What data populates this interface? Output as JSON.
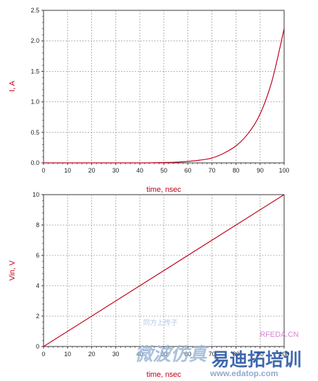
{
  "colors": {
    "series": "#c0001a",
    "grid": "#9a9a9a",
    "axis": "#333333"
  },
  "chart_data": [
    {
      "type": "line",
      "title": "",
      "xlabel": "time, nsec",
      "ylabel": "I, A",
      "xlim": [
        0,
        100
      ],
      "ylim": [
        0,
        2.5
      ],
      "x_ticks": [
        "0",
        "10",
        "20",
        "30",
        "40",
        "50",
        "60",
        "70",
        "80",
        "90",
        "100"
      ],
      "y_ticks": [
        "0.0",
        "0.5",
        "1.0",
        "1.5",
        "2.0",
        "2.5"
      ],
      "grid": true,
      "series": [
        {
          "x": [
            0,
            10,
            20,
            30,
            40,
            45,
            50,
            55,
            60,
            65,
            70,
            75,
            80,
            85,
            90,
            95,
            100
          ],
          "y": [
            0.0,
            0.0,
            0.0,
            0.0,
            0.0,
            0.002,
            0.006,
            0.012,
            0.024,
            0.045,
            0.08,
            0.16,
            0.28,
            0.48,
            0.8,
            1.35,
            2.2
          ]
        }
      ]
    },
    {
      "type": "line",
      "title": "",
      "xlabel": "time, nsec",
      "ylabel": "Vin, V",
      "xlim": [
        0,
        100
      ],
      "ylim": [
        0,
        10
      ],
      "x_ticks": [
        "0",
        "10",
        "20",
        "30",
        "40",
        "50",
        "60",
        "70",
        "80",
        "90",
        "100"
      ],
      "y_ticks": [
        "0",
        "2",
        "4",
        "6",
        "8",
        "10"
      ],
      "grid": true,
      "series": [
        {
          "x": [
            0,
            100
          ],
          "y": [
            0,
            10
          ]
        }
      ]
    }
  ],
  "watermark": {
    "top_text": "同方上传子",
    "cn_text": "微波仿真",
    "brand": "RFEDA.CN",
    "title": "易迪拓培训",
    "url": "www.edatop.com"
  }
}
